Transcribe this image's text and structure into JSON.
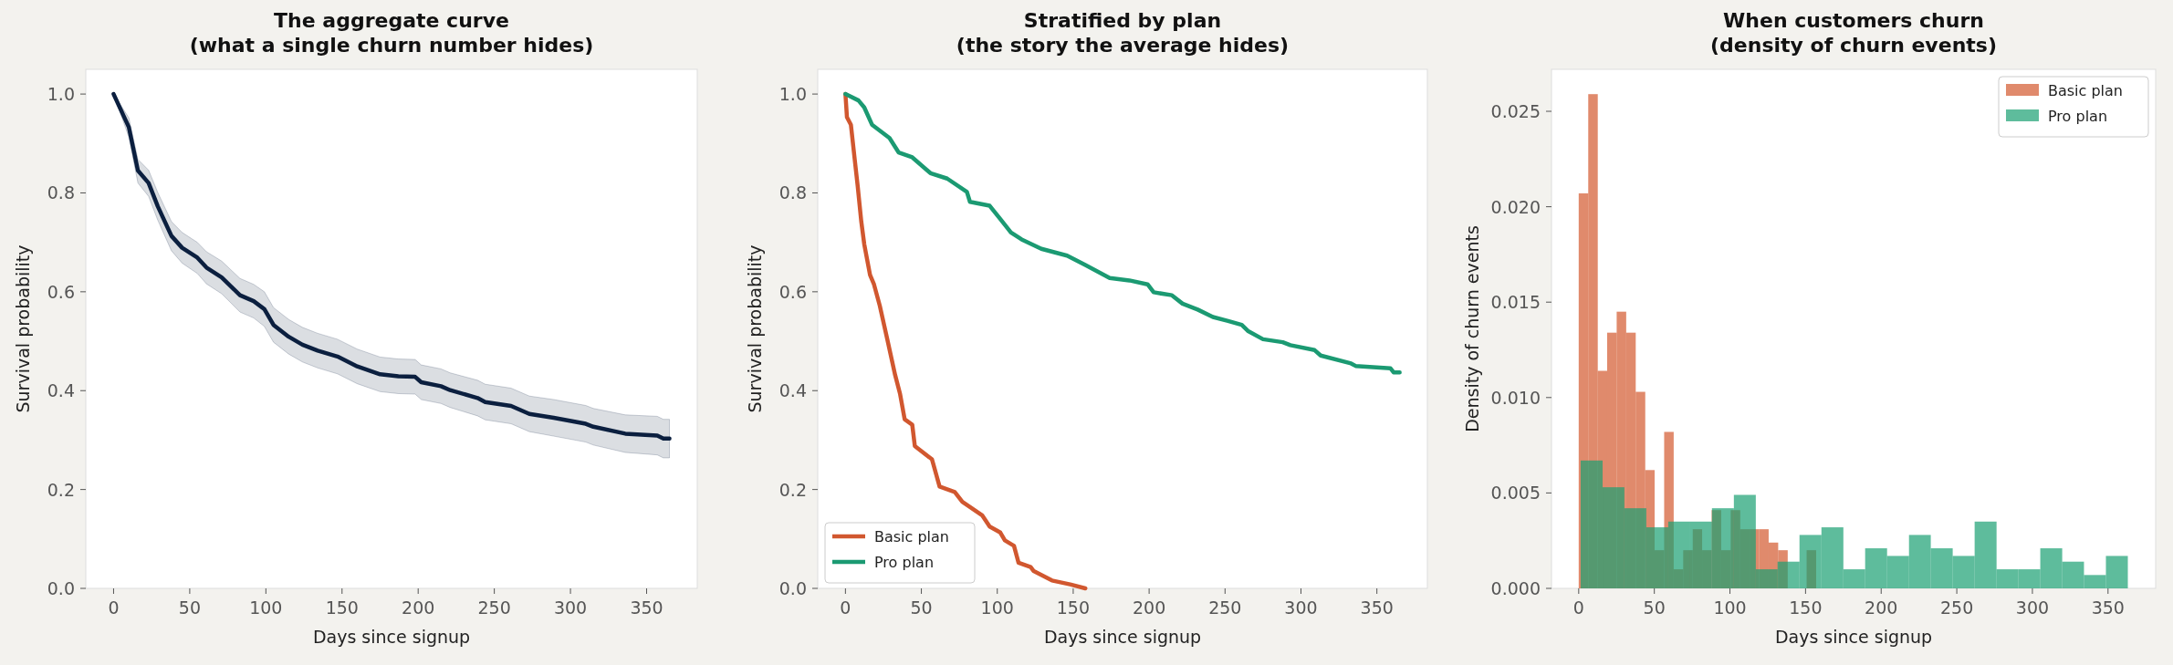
{
  "chart_data": [
    {
      "type": "line",
      "title": "The aggregate curve\n(what a single churn number hides)",
      "xlabel": "Days since signup",
      "ylabel": "Survival probability",
      "xlim": [
        -18.25,
        383.25
      ],
      "ylim": [
        0,
        1.05
      ],
      "xticks": [
        0,
        50,
        100,
        150,
        200,
        250,
        300,
        350
      ],
      "yticks": [
        {
          "value": 0,
          "label": "0.0"
        },
        {
          "value": 0.2,
          "label": "0.2"
        },
        {
          "value": 0.4,
          "label": "0.4"
        },
        {
          "value": 0.6,
          "label": "0.6"
        },
        {
          "value": 0.8,
          "label": "0.8"
        },
        {
          "value": 1,
          "label": "1.0"
        }
      ],
      "grid": false,
      "legend": false,
      "series": [
        {
          "color": "#0b1f3f",
          "x": [
            0,
            10,
            16,
            23,
            29,
            38,
            45,
            55,
            61,
            71,
            83,
            92,
            99,
            105,
            115,
            124,
            134,
            147,
            160,
            175,
            187,
            198,
            202,
            215,
            221,
            239,
            244,
            261,
            273,
            289,
            310,
            315,
            336,
            357,
            361,
            365
          ],
          "values": [
            1.0,
            0.933,
            0.845,
            0.82,
            0.773,
            0.713,
            0.689,
            0.669,
            0.649,
            0.629,
            0.593,
            0.581,
            0.565,
            0.533,
            0.509,
            0.493,
            0.481,
            0.469,
            0.449,
            0.433,
            0.429,
            0.428,
            0.417,
            0.409,
            0.401,
            0.385,
            0.377,
            0.369,
            0.353,
            0.345,
            0.333,
            0.327,
            0.313,
            0.309,
            0.303,
            0.303
          ],
          "lower": [
            1.0,
            0.913,
            0.82,
            0.793,
            0.745,
            0.683,
            0.658,
            0.637,
            0.616,
            0.596,
            0.559,
            0.547,
            0.53,
            0.498,
            0.474,
            0.458,
            0.446,
            0.434,
            0.414,
            0.398,
            0.394,
            0.393,
            0.382,
            0.374,
            0.366,
            0.349,
            0.341,
            0.333,
            0.317,
            0.308,
            0.296,
            0.29,
            0.275,
            0.27,
            0.264,
            0.264
          ],
          "upper": [
            1.0,
            0.952,
            0.868,
            0.846,
            0.801,
            0.742,
            0.72,
            0.7,
            0.681,
            0.662,
            0.627,
            0.615,
            0.6,
            0.568,
            0.544,
            0.528,
            0.516,
            0.504,
            0.484,
            0.468,
            0.464,
            0.463,
            0.452,
            0.444,
            0.436,
            0.421,
            0.413,
            0.405,
            0.389,
            0.382,
            0.37,
            0.364,
            0.351,
            0.348,
            0.342,
            0.342
          ]
        }
      ]
    },
    {
      "type": "line",
      "title": "Stratified by plan\n(the story the average hides)",
      "xlabel": "Days since signup",
      "ylabel": "Survival probability",
      "xlim": [
        -18.25,
        383.25
      ],
      "ylim": [
        0,
        1.05
      ],
      "xticks": [
        0,
        50,
        100,
        150,
        200,
        250,
        300,
        350
      ],
      "yticks": [
        {
          "value": 0,
          "label": "0.0"
        },
        {
          "value": 0.2,
          "label": "0.2"
        },
        {
          "value": 0.4,
          "label": "0.4"
        },
        {
          "value": 0.6,
          "label": "0.6"
        },
        {
          "value": 0.8,
          "label": "0.8"
        },
        {
          "value": 1,
          "label": "1.0"
        }
      ],
      "grid": false,
      "legend": "bottom left",
      "series": [
        {
          "name": "Basic plan",
          "color": "#d1572f",
          "x": [
            0,
            1,
            3.6,
            6.1,
            8.1,
            10.4,
            12.4,
            16.2,
            18.8,
            22.6,
            27.7,
            32.7,
            36,
            39,
            44,
            45.7,
            57,
            62,
            72,
            77,
            90,
            95,
            102,
            105,
            111,
            114,
            122,
            124,
            136,
            148,
            158
          ],
          "values": [
            1.0,
            0.953,
            0.938,
            0.868,
            0.813,
            0.743,
            0.696,
            0.634,
            0.615,
            0.572,
            0.502,
            0.432,
            0.393,
            0.342,
            0.331,
            0.288,
            0.261,
            0.206,
            0.195,
            0.175,
            0.148,
            0.125,
            0.113,
            0.097,
            0.086,
            0.052,
            0.043,
            0.035,
            0.016,
            0.008,
            0
          ]
        },
        {
          "name": "Pro plan",
          "color": "#1b9a72",
          "x": [
            0,
            8.6,
            12.4,
            17.5,
            29,
            35,
            44,
            56,
            67,
            80,
            82,
            95,
            102,
            109,
            116,
            129,
            146,
            158,
            174,
            187,
            199,
            203,
            215,
            222,
            232,
            242,
            252,
            261,
            265,
            275,
            288,
            293,
            309,
            313,
            333,
            336,
            359,
            361,
            365
          ],
          "values": [
            1.0,
            0.987,
            0.973,
            0.938,
            0.911,
            0.882,
            0.872,
            0.84,
            0.829,
            0.802,
            0.782,
            0.774,
            0.747,
            0.72,
            0.706,
            0.687,
            0.673,
            0.654,
            0.628,
            0.623,
            0.615,
            0.599,
            0.593,
            0.576,
            0.564,
            0.549,
            0.541,
            0.533,
            0.521,
            0.504,
            0.498,
            0.492,
            0.482,
            0.471,
            0.455,
            0.45,
            0.445,
            0.437,
            0.437
          ]
        }
      ]
    },
    {
      "type": "histogram",
      "title": "When customers churn\n(density of churn events)",
      "xlabel": "Days since signup",
      "ylabel": "Density of churn events",
      "xlim": [
        -18,
        381.5
      ],
      "ylim": [
        0,
        0.0272
      ],
      "xticks": [
        0,
        50,
        100,
        150,
        200,
        250,
        300,
        350
      ],
      "yticks": [
        {
          "value": 0,
          "label": "0.000"
        },
        {
          "value": 0.005,
          "label": "0.005"
        },
        {
          "value": 0.01,
          "label": "0.010"
        },
        {
          "value": 0.015,
          "label": "0.015"
        },
        {
          "value": 0.02,
          "label": "0.020"
        },
        {
          "value": 0.025,
          "label": "0.025"
        }
      ],
      "grid": false,
      "legend": "top right",
      "bins": [
        0,
        6.3,
        12.6,
        18.8,
        25.1,
        31.4,
        37.7,
        44,
        50.2,
        56.5,
        62.8,
        69.1,
        75.4,
        81.6,
        87.9,
        94.2,
        100.5,
        106.8,
        113,
        119.3,
        125.6,
        131.9,
        138.2,
        144.4,
        150.7,
        157
      ],
      "series": [
        {
          "name": "Basic plan",
          "color": "#d3592e",
          "values": [
            0.0207,
            0.0259,
            0.0114,
            0.0134,
            0.0145,
            0.0134,
            0.0103,
            0.0062,
            0.002,
            0.0082,
            0.001,
            0.002,
            0.0031,
            0.002,
            0.0041,
            0.002,
            0.0041,
            0.0031,
            0.0031,
            0.0031,
            0.0024,
            0.002,
            0,
            0,
            0.002
          ]
        },
        {
          "name": "Pro plan",
          "color": "#1a9f72",
          "bins": [
            1.3,
            15.8,
            30.2,
            44.7,
            59.2,
            73.7,
            88.1,
            102.6,
            117.1,
            131.5,
            146,
            160.5,
            175,
            189.4,
            203.9,
            218.4,
            232.8,
            247.3,
            261.8,
            276.3,
            290.7,
            305.2,
            319.7,
            334.1,
            348.6,
            363.1
          ],
          "values": [
            0.0067,
            0.0053,
            0.0042,
            0.0032,
            0.0035,
            0.0035,
            0.0042,
            0.0049,
            0.001,
            0.0014,
            0.0028,
            0.0032,
            0.001,
            0.0021,
            0.0017,
            0.0028,
            0.0021,
            0.0017,
            0.0035,
            0.001,
            0.001,
            0.0021,
            0.0014,
            0.0007,
            0.0017
          ]
        }
      ]
    }
  ]
}
